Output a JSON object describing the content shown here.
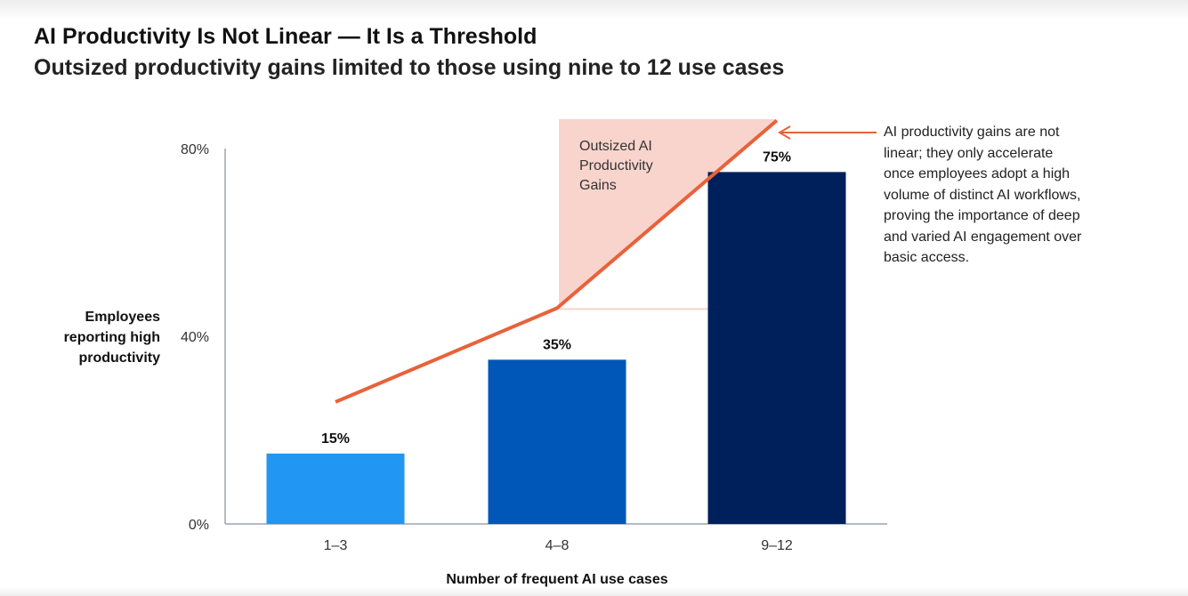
{
  "title": "AI Productivity Is Not Linear — It Is a Threshold",
  "subtitle": "Outsized productivity gains limited to those using nine to 12 use cases",
  "chart_data": {
    "type": "bar",
    "categories": [
      "1–3",
      "4–8",
      "9–12"
    ],
    "values": [
      15,
      35,
      75
    ],
    "data_labels": [
      "15%",
      "35%",
      "75%"
    ],
    "bar_colors": [
      "#2196f3",
      "#0057b8",
      "#00205b"
    ],
    "xlabel": "Number of frequent AI use cases",
    "ylabel": "Employees reporting high productivity",
    "ylim": [
      0,
      80
    ],
    "yticks": [
      {
        "value": 0,
        "label": "0%"
      },
      {
        "value": 40,
        "label": "40%"
      },
      {
        "value": 80,
        "label": "80%"
      }
    ],
    "grid": false,
    "trend_line": {
      "color": "#e8623a",
      "points": [
        {
          "x": "1–3",
          "y": 26
        },
        {
          "x": "4–8",
          "y": 46
        },
        {
          "x": "9–12",
          "y": 86
        }
      ]
    },
    "highlight_region": {
      "label_lines": [
        "Outsized AI",
        "Productivity",
        "Gains"
      ],
      "color": "#f8d4cc"
    },
    "annotation": {
      "text_lines": [
        "AI productivity gains are not",
        "linear; they only accelerate",
        "once employees adopt a high",
        "volume of distinct AI workflows,",
        "proving the importance of deep",
        "and varied AI engagement over",
        "basic access."
      ],
      "arrow_color": "#e8623a"
    }
  }
}
